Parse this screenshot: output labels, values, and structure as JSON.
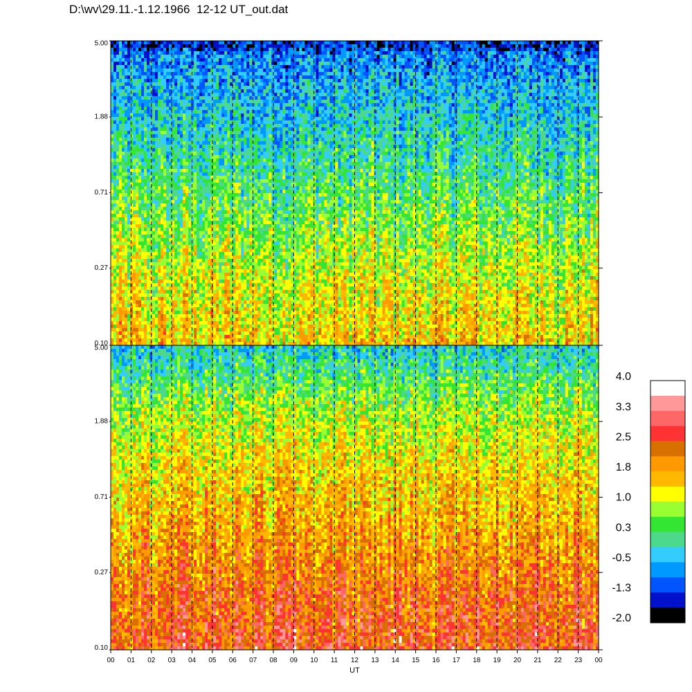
{
  "title": "D:\\wv\\29.11.-1.12.1966  12-12 UT_out.dat",
  "chart_data": [
    {
      "type": "heatmap",
      "panel": "top",
      "x_title": "",
      "y_ticks": [
        "5.00",
        "1.88",
        "0.71",
        "0.27",
        "0.10"
      ],
      "y_scale": "log",
      "ylim": [
        0.1,
        5.0
      ],
      "xlim": [
        0,
        24
      ],
      "dashed_hour_lines": true,
      "intensity_profile": {
        "description_levels": "color level index from top to bottom",
        "values": [
          -0.9,
          -0.4,
          0.1,
          0.6,
          1.1,
          1.5
        ]
      }
    },
    {
      "type": "heatmap",
      "panel": "bottom",
      "x_title": "UT",
      "x_ticks": [
        "00",
        "01",
        "02",
        "03",
        "04",
        "05",
        "06",
        "07",
        "08",
        "09",
        "10",
        "11",
        "12",
        "13",
        "14",
        "15",
        "16",
        "17",
        "18",
        "19",
        "20",
        "21",
        "22",
        "23",
        "00"
      ],
      "y_ticks": [
        "5.00",
        "1.88",
        "0.71",
        "0.27",
        "0.10"
      ],
      "y_scale": "log",
      "ylim": [
        0.1,
        5.0
      ],
      "xlim": [
        0,
        24
      ],
      "dashed_hour_lines": true,
      "intensity_profile": {
        "values": [
          -0.2,
          0.8,
          1.4,
          1.8,
          2.3,
          2.6
        ]
      }
    }
  ],
  "colorbar": {
    "labels": [
      "4.0",
      "3.3",
      "2.5",
      "1.8",
      "1.0",
      "0.3",
      "-0.5",
      "-1.3",
      "-2.0"
    ],
    "min": -2.0,
    "max": 4.0,
    "colors": [
      "#ffffff",
      "#ff9999",
      "#ff6666",
      "#ff3333",
      "#d87000",
      "#ff9900",
      "#ffb800",
      "#ffff00",
      "#99ff33",
      "#33e633",
      "#4dd98c",
      "#33ccff",
      "#0099ff",
      "#0055ff",
      "#0011cc",
      "#000000"
    ]
  }
}
